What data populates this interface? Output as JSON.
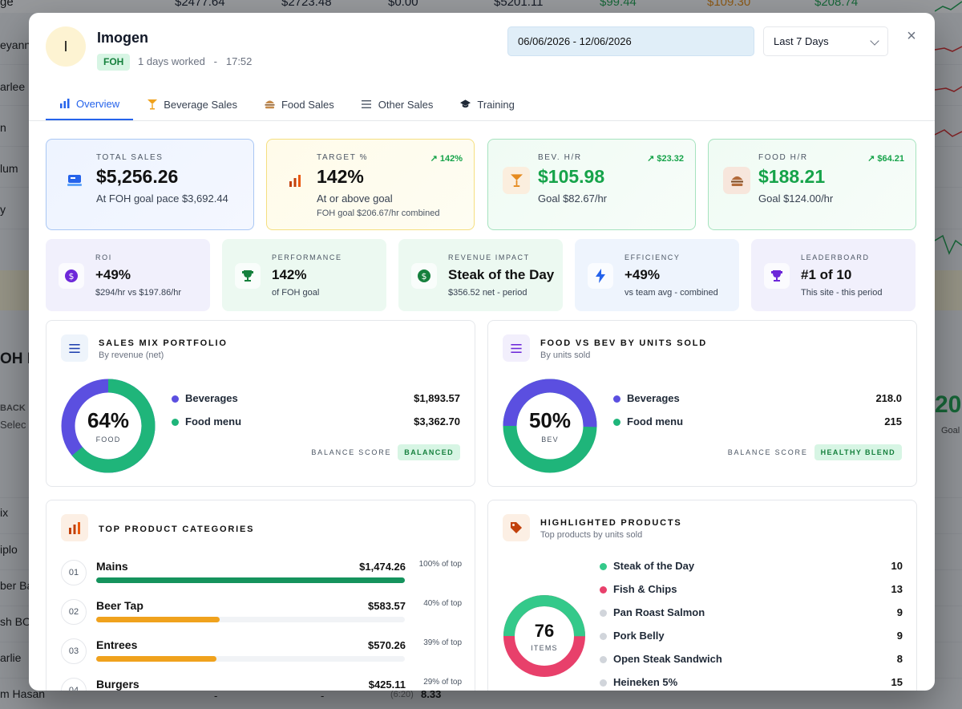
{
  "background": {
    "top_values": [
      "ge",
      "$2477.64",
      "$2723.48",
      "$0.00",
      "$5201.11",
      "$99.44",
      "$109.30",
      "$208.74"
    ],
    "left_labels": [
      "eyann",
      "arlee",
      "n",
      "lum",
      "y",
      "OH H",
      "BACK",
      "Selec",
      "ix",
      "iplo",
      "ber Ba",
      "sh BOI",
      "arlie",
      "m Hasan"
    ],
    "right_labels": [
      "20",
      "Goal"
    ],
    "bottom_values": [
      "-",
      "-",
      "(6:20)",
      "8.33"
    ]
  },
  "employee": {
    "initial": "I",
    "name": "Imogen",
    "role": "FOH",
    "days_worked": "1 days worked",
    "separator": "-",
    "hours": "17:52"
  },
  "controls": {
    "date_range": "06/06/2026 - 12/06/2026",
    "period": "Last 7 Days",
    "close": "×"
  },
  "tabs": [
    {
      "label": "Overview",
      "icon": "bar-chart-icon",
      "active": true
    },
    {
      "label": "Beverage Sales",
      "icon": "cocktail-icon",
      "active": false
    },
    {
      "label": "Food Sales",
      "icon": "burger-icon",
      "active": false
    },
    {
      "label": "Other Sales",
      "icon": "list-icon",
      "active": false
    },
    {
      "label": "Training",
      "icon": "graduation-cap-icon",
      "active": false
    }
  ],
  "kpis": [
    {
      "label": "TOTAL SALES",
      "value": "$5,256.26",
      "sub": "At FOH goal pace $3,692.44",
      "sub2": "",
      "trend": "",
      "icon": "register-icon"
    },
    {
      "label": "TARGET %",
      "value": "142%",
      "sub": "At or above goal",
      "sub2": "FOH goal $206.67/hr combined",
      "trend": "↗ 142%",
      "icon": "bar-chart-icon"
    },
    {
      "label": "BEV. H/R",
      "value": "$105.98",
      "sub": "Goal $82.67/hr",
      "sub2": "",
      "trend": "↗ $23.32",
      "icon": "cocktail-icon"
    },
    {
      "label": "FOOD H/R",
      "value": "$188.21",
      "sub": "Goal $124.00/hr",
      "sub2": "",
      "trend": "↗ $64.21",
      "icon": "burger-icon"
    }
  ],
  "minis": [
    {
      "label": "ROI",
      "value": "+49%",
      "sub": "$294/hr vs $197.86/hr",
      "icon": "dollar-circle-icon"
    },
    {
      "label": "PERFORMANCE",
      "value": "142%",
      "sub": "of FOH goal",
      "icon": "trophy-icon"
    },
    {
      "label": "REVENUE IMPACT",
      "value": "Steak of the Day",
      "sub": "$356.52 net - period",
      "icon": "dollar-circle-icon"
    },
    {
      "label": "EFFICIENCY",
      "value": "+49%",
      "sub": "vs team avg - combined",
      "icon": "bolt-icon"
    },
    {
      "label": "LEADERBOARD",
      "value": "#1 of 10",
      "sub": "This site - this period",
      "icon": "trophy-icon"
    }
  ],
  "sales_mix": {
    "title": "SALES MIX PORTFOLIO",
    "subtitle": "By revenue (net)",
    "center_value": "64%",
    "center_label": "FOOD",
    "food_fraction": 0.64,
    "rows": [
      {
        "name": "Beverages",
        "value": "$1,893.57",
        "color": "#5b4fe0"
      },
      {
        "name": "Food menu",
        "value": "$3,362.70",
        "color": "#1fb57a"
      }
    ],
    "balance_label": "BALANCE SCORE",
    "balance_value": "BALANCED"
  },
  "units": {
    "title": "FOOD VS BEV BY UNITS SOLD",
    "subtitle": "By units sold",
    "center_value": "50%",
    "center_label": "BEV",
    "bev_fraction": 0.503,
    "rows": [
      {
        "name": "Beverages",
        "value": "218.0",
        "color": "#5b4fe0"
      },
      {
        "name": "Food menu",
        "value": "215",
        "color": "#1fb57a"
      }
    ],
    "balance_label": "BALANCE SCORE",
    "balance_value": "HEALTHY BLEND"
  },
  "categories": {
    "title": "TOP PRODUCT CATEGORIES",
    "rows": [
      {
        "rank": "01",
        "name": "Mains",
        "value": "$1,474.26",
        "pct": "100% of top",
        "fraction": 1.0,
        "color": "#15935d"
      },
      {
        "rank": "02",
        "name": "Beer Tap",
        "value": "$583.57",
        "pct": "40% of top",
        "fraction": 0.4,
        "color": "#f0a21d"
      },
      {
        "rank": "03",
        "name": "Entrees",
        "value": "$570.26",
        "pct": "39% of top",
        "fraction": 0.39,
        "color": "#f0a21d"
      },
      {
        "rank": "04",
        "name": "Burgers",
        "value": "$425.11",
        "pct": "29% of top",
        "fraction": 0.29,
        "color": "#f0a21d"
      }
    ]
  },
  "highlighted": {
    "title": "HIGHLIGHTED PRODUCTS",
    "subtitle": "Top products by units sold",
    "center_value": "76",
    "center_label": "ITEMS",
    "rows": [
      {
        "name": "Steak of the Day",
        "value": "10",
        "color": "#34c98a"
      },
      {
        "name": "Fish & Chips",
        "value": "13",
        "color": "#e8406b"
      },
      {
        "name": "Pan Roast Salmon",
        "value": "9",
        "color": "#d1d5db"
      },
      {
        "name": "Pork Belly",
        "value": "9",
        "color": "#d1d5db"
      },
      {
        "name": "Open Steak Sandwich",
        "value": "8",
        "color": "#d1d5db"
      },
      {
        "name": "Heineken 5%",
        "value": "15",
        "color": "#d1d5db"
      }
    ],
    "ring_fractions": [
      0.5,
      0.5
    ],
    "ring_colors": [
      "#34c98a",
      "#e8406b"
    ]
  },
  "colors": {
    "accent": "#2563eb",
    "bev": "#5b4fe0",
    "food": "#1fb57a"
  }
}
